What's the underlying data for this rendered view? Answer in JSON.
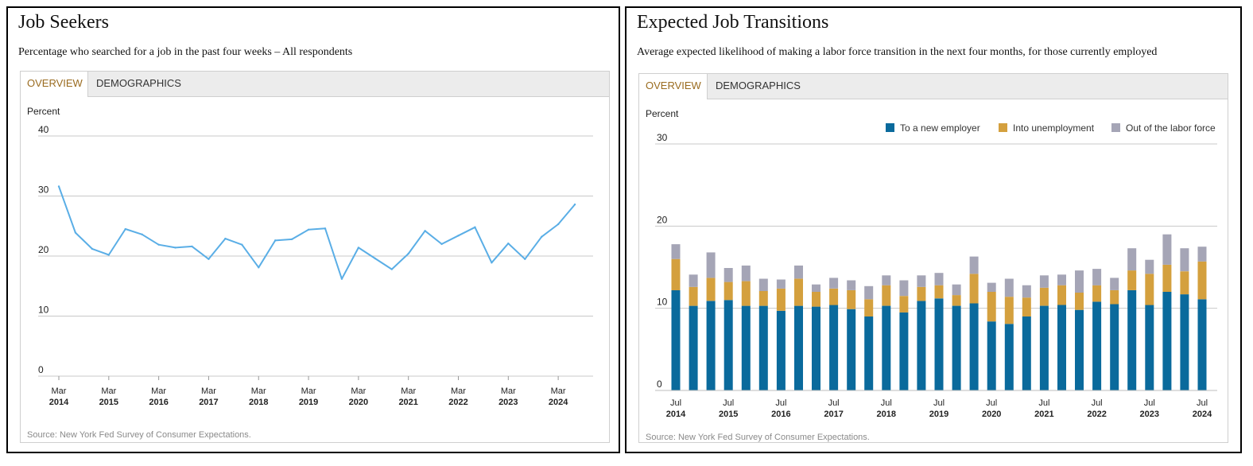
{
  "left_panel": {
    "title": "Job Seekers",
    "subtitle": "Percentage who searched for a job in the past four weeks – All respondents",
    "tabs": [
      {
        "label": "OVERVIEW"
      },
      {
        "label": "DEMOGRAPHICS"
      }
    ],
    "source": "Source: New York Fed Survey of Consumer Expectations."
  },
  "right_panel": {
    "title": "Expected Job Transitions",
    "subtitle": "Average expected likelihood of making a labor force transition in the next four months, for those currently employed",
    "tabs": [
      {
        "label": "OVERVIEW"
      },
      {
        "label": "DEMOGRAPHICS"
      }
    ],
    "source": "Source: New York Fed Survey of Consumer Expectations."
  },
  "chart_data": [
    {
      "type": "line",
      "ylabel": "Percent",
      "ylim": [
        0,
        40
      ],
      "yticks": [
        0,
        10,
        20,
        30,
        40
      ],
      "grid": true,
      "xlim": [
        "2014-03",
        "2024-11"
      ],
      "x_tick_labels": [
        {
          "month": "Mar",
          "year": "2014",
          "date": "2014-03"
        },
        {
          "month": "Mar",
          "year": "2015",
          "date": "2015-03"
        },
        {
          "month": "Mar",
          "year": "2016",
          "date": "2016-03"
        },
        {
          "month": "Mar",
          "year": "2017",
          "date": "2017-03"
        },
        {
          "month": "Mar",
          "year": "2018",
          "date": "2018-03"
        },
        {
          "month": "Mar",
          "year": "2019",
          "date": "2019-03"
        },
        {
          "month": "Mar",
          "year": "2020",
          "date": "2020-03"
        },
        {
          "month": "Mar",
          "year": "2021",
          "date": "2021-03"
        },
        {
          "month": "Mar",
          "year": "2022",
          "date": "2022-03"
        },
        {
          "month": "Mar",
          "year": "2023",
          "date": "2023-03"
        },
        {
          "month": "Mar",
          "year": "2024",
          "date": "2024-03"
        }
      ],
      "color": "#5aaee6",
      "series": [
        {
          "points": [
            {
              "x": "2014-03",
              "y": 31.6
            },
            {
              "x": "2014-07",
              "y": 23.9
            },
            {
              "x": "2014-11",
              "y": 21.2
            },
            {
              "x": "2015-03",
              "y": 20.2
            },
            {
              "x": "2015-07",
              "y": 24.5
            },
            {
              "x": "2015-11",
              "y": 23.6
            },
            {
              "x": "2016-03",
              "y": 21.9
            },
            {
              "x": "2016-07",
              "y": 21.4
            },
            {
              "x": "2016-11",
              "y": 21.6
            },
            {
              "x": "2017-03",
              "y": 19.5
            },
            {
              "x": "2017-07",
              "y": 22.9
            },
            {
              "x": "2017-11",
              "y": 21.9
            },
            {
              "x": "2018-03",
              "y": 18.1
            },
            {
              "x": "2018-07",
              "y": 22.6
            },
            {
              "x": "2018-11",
              "y": 22.8
            },
            {
              "x": "2019-03",
              "y": 24.4
            },
            {
              "x": "2019-07",
              "y": 24.6
            },
            {
              "x": "2019-11",
              "y": 16.2
            },
            {
              "x": "2020-03",
              "y": 21.4
            },
            {
              "x": "2020-07",
              "y": 19.6
            },
            {
              "x": "2020-11",
              "y": 17.8
            },
            {
              "x": "2021-03",
              "y": 20.4
            },
            {
              "x": "2021-07",
              "y": 24.2
            },
            {
              "x": "2021-11",
              "y": 22.0
            },
            {
              "x": "2022-03",
              "y": 23.4
            },
            {
              "x": "2022-07",
              "y": 24.8
            },
            {
              "x": "2022-11",
              "y": 18.9
            },
            {
              "x": "2023-03",
              "y": 22.1
            },
            {
              "x": "2023-07",
              "y": 19.5
            },
            {
              "x": "2023-11",
              "y": 23.2
            },
            {
              "x": "2024-03",
              "y": 25.3
            },
            {
              "x": "2024-07",
              "y": 28.6
            }
          ]
        }
      ]
    },
    {
      "type": "bar",
      "stacked": true,
      "ylabel": "Percent",
      "ylim": [
        0,
        30
      ],
      "yticks": [
        0,
        10,
        20,
        30
      ],
      "grid": true,
      "legend_position": "top-right",
      "categories": [
        "2014-07",
        "2014-11",
        "2015-03",
        "2015-07",
        "2015-11",
        "2016-03",
        "2016-07",
        "2016-11",
        "2017-03",
        "2017-07",
        "2017-11",
        "2018-03",
        "2018-07",
        "2018-11",
        "2019-03",
        "2019-07",
        "2019-11",
        "2020-03",
        "2020-07",
        "2020-11",
        "2021-03",
        "2021-07",
        "2021-11",
        "2022-03",
        "2022-07",
        "2022-11",
        "2023-03",
        "2023-07",
        "2023-11",
        "2024-03",
        "2024-07"
      ],
      "x_tick_labels": [
        {
          "month": "Jul",
          "year": "2014",
          "index": 0
        },
        {
          "month": "Jul",
          "year": "2015",
          "index": 3
        },
        {
          "month": "Jul",
          "year": "2016",
          "index": 6
        },
        {
          "month": "Jul",
          "year": "2017",
          "index": 9
        },
        {
          "month": "Jul",
          "year": "2018",
          "index": 12
        },
        {
          "month": "Jul",
          "year": "2019",
          "index": 15
        },
        {
          "month": "Jul",
          "year": "2020",
          "index": 18
        },
        {
          "month": "Jul",
          "year": "2021",
          "index": 21
        },
        {
          "month": "Jul",
          "year": "2022",
          "index": 24
        },
        {
          "month": "Jul",
          "year": "2023",
          "index": 27
        },
        {
          "month": "Jul",
          "year": "2024",
          "index": 30
        }
      ],
      "series": [
        {
          "name": "To a new employer",
          "color": "#0a6a9c",
          "values": [
            12.2,
            10.3,
            10.9,
            11.0,
            10.3,
            10.3,
            9.7,
            10.3,
            10.2,
            10.4,
            9.9,
            9.0,
            10.3,
            9.5,
            10.9,
            11.2,
            10.3,
            10.6,
            8.4,
            8.1,
            9.0,
            10.3,
            10.4,
            9.8,
            10.8,
            10.5,
            12.2,
            10.4,
            12.0,
            11.7,
            11.1
          ]
        },
        {
          "name": "Into unemployment",
          "color": "#d4a03e",
          "values": [
            3.8,
            2.3,
            2.8,
            2.2,
            3.0,
            1.8,
            2.7,
            3.3,
            1.8,
            2.0,
            2.3,
            2.1,
            2.5,
            2.0,
            1.7,
            1.6,
            1.3,
            3.6,
            3.6,
            3.3,
            2.3,
            2.2,
            2.4,
            2.1,
            2.0,
            1.7,
            2.4,
            3.8,
            3.3,
            2.8,
            4.6
          ]
        },
        {
          "name": "Out of the labor force",
          "color": "#a5a5b6",
          "values": [
            1.8,
            1.5,
            3.1,
            1.7,
            1.9,
            1.5,
            1.1,
            1.6,
            0.9,
            1.3,
            1.2,
            1.6,
            1.2,
            1.9,
            1.4,
            1.5,
            1.3,
            2.1,
            1.1,
            2.2,
            1.5,
            1.5,
            1.3,
            2.7,
            2.0,
            1.5,
            2.7,
            1.7,
            3.7,
            2.8,
            1.8
          ]
        }
      ]
    }
  ]
}
